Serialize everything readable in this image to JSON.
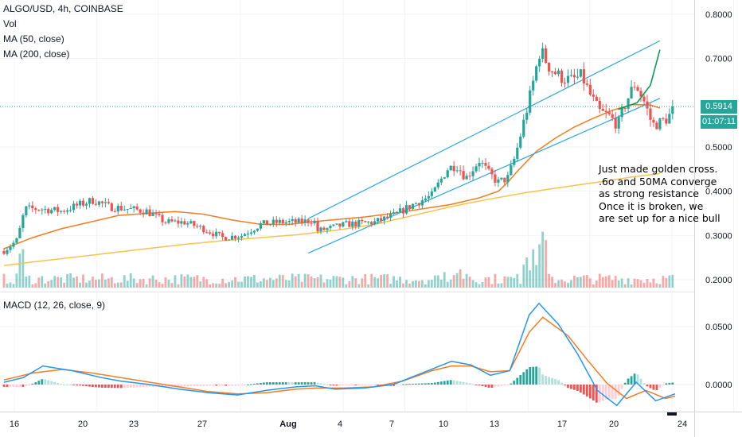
{
  "header": {
    "symbol_line": "ALGO/USD, 4h, COINBASE",
    "vol_label": "Vol",
    "ma50_label": "MA (50, close)",
    "ma200_label": "MA (200, close)",
    "macd_label": "MACD (12, 26, close, 9)"
  },
  "annotation": [
    "Just made golden cross.",
    ".6o and 50MA converge",
    "as strong resistance",
    "Once it is broken, we",
    "are set up for a nice bull"
  ],
  "price_badge": {
    "value": "0.5914",
    "countdown": "01:07:11"
  },
  "colors": {
    "up": "#26a69a",
    "down": "#ef5350",
    "ma50": "#f57c1f",
    "ma200": "#f7c34a",
    "channel": "#2aa6e0",
    "macd": "#2196f3",
    "signal": "#f57c1f",
    "projection": "#0b9e5a"
  },
  "chart_data": [
    {
      "type": "candlestick",
      "title": "ALGO/USD, 4h, COINBASE",
      "y_ticks": [
        "0.8000",
        "0.7000",
        "0.6000",
        "0.5000",
        "0.4000",
        "0.3000",
        "0.2000"
      ],
      "ylim": [
        0.18,
        0.83
      ],
      "x_ticks": [
        "16",
        "20",
        "23",
        "27",
        "Aug",
        "4",
        "7",
        "10",
        "13",
        "17",
        "20",
        "24"
      ],
      "last_price": 0.5914,
      "series": [
        {
          "name": "MA (50, close)",
          "points": [
            [
              15.5,
              0.27
            ],
            [
              17,
              0.295
            ],
            [
              18.5,
              0.315
            ],
            [
              20,
              0.33
            ],
            [
              21.5,
              0.345
            ],
            [
              23,
              0.35
            ],
            [
              24.5,
              0.354
            ],
            [
              26,
              0.348
            ],
            [
              27.5,
              0.335
            ],
            [
              29,
              0.325
            ],
            [
              30.5,
              0.325
            ],
            [
              31.5,
              0.33
            ],
            [
              33,
              0.336
            ],
            [
              34.5,
              0.342
            ],
            [
              36,
              0.35
            ],
            [
              37.5,
              0.36
            ],
            [
              39,
              0.37
            ],
            [
              40.5,
              0.385
            ],
            [
              41.5,
              0.4
            ],
            [
              42,
              0.42
            ],
            [
              42.5,
              0.445
            ],
            [
              43.5,
              0.49
            ],
            [
              44.5,
              0.52
            ],
            [
              45.5,
              0.545
            ],
            [
              46.5,
              0.565
            ],
            [
              47.5,
              0.583
            ],
            [
              48.5,
              0.596
            ],
            [
              49.5,
              0.595
            ],
            [
              50,
              0.588
            ]
          ]
        },
        {
          "name": "MA (200, close)",
          "points": [
            [
              15.5,
              0.232
            ],
            [
              17,
              0.24
            ],
            [
              19,
              0.25
            ],
            [
              21,
              0.26
            ],
            [
              23,
              0.27
            ],
            [
              25,
              0.28
            ],
            [
              27,
              0.288
            ],
            [
              29,
              0.295
            ],
            [
              31,
              0.302
            ],
            [
              33,
              0.312
            ],
            [
              35,
              0.325
            ],
            [
              37,
              0.345
            ],
            [
              39,
              0.365
            ],
            [
              41,
              0.382
            ],
            [
              43,
              0.397
            ],
            [
              45,
              0.41
            ],
            [
              47,
              0.422
            ],
            [
              48.5,
              0.432
            ],
            [
              50,
              0.44
            ]
          ]
        },
        {
          "name": "Volume",
          "visible": true
        },
        {
          "name": "Channel upper",
          "points": [
            [
              31.5,
              0.338
            ],
            [
              50,
              0.74
            ]
          ]
        },
        {
          "name": "Channel lower",
          "points": [
            [
              31.5,
              0.26
            ],
            [
              50,
              0.61
            ]
          ]
        },
        {
          "name": "Projection",
          "points": [
            [
              47.8,
              0.585
            ],
            [
              48.8,
              0.6
            ],
            [
              49.5,
              0.64
            ],
            [
              50,
              0.72
            ]
          ]
        }
      ]
    },
    {
      "type": "line",
      "title": "MACD (12, 26, close, 9)",
      "y_ticks": [
        "0.0500",
        "0.0000"
      ],
      "ylim": [
        -0.022,
        0.075
      ],
      "series": [
        {
          "name": "MACD",
          "points": [
            [
              15.5,
              0.002
            ],
            [
              16.5,
              0.006
            ],
            [
              17.5,
              0.016
            ],
            [
              19,
              0.012
            ],
            [
              20.5,
              0.006
            ],
            [
              21.5,
              0.003
            ],
            [
              23,
              0.0
            ],
            [
              24.5,
              -0.004
            ],
            [
              26,
              -0.007
            ],
            [
              27.5,
              -0.009
            ],
            [
              29,
              -0.005
            ],
            [
              30.5,
              -0.002
            ],
            [
              31.5,
              -0.001
            ],
            [
              32.5,
              -0.004
            ],
            [
              34,
              -0.003
            ],
            [
              35.5,
              0.0
            ],
            [
              37,
              0.01
            ],
            [
              38.5,
              0.02
            ],
            [
              39.5,
              0.017
            ],
            [
              40.5,
              0.008
            ],
            [
              41.5,
              0.012
            ],
            [
              42.5,
              0.06
            ],
            [
              43,
              0.07
            ],
            [
              44,
              0.052
            ],
            [
              45,
              0.026
            ],
            [
              46,
              -0.005
            ],
            [
              47,
              -0.018
            ],
            [
              48,
              0.002
            ],
            [
              49,
              -0.014
            ],
            [
              50,
              -0.008
            ]
          ]
        },
        {
          "name": "Signal",
          "points": [
            [
              15.5,
              0.004
            ],
            [
              17,
              0.01
            ],
            [
              18.5,
              0.013
            ],
            [
              20,
              0.01
            ],
            [
              21.5,
              0.006
            ],
            [
              23,
              0.002
            ],
            [
              24.5,
              -0.002
            ],
            [
              26,
              -0.006
            ],
            [
              27.5,
              -0.008
            ],
            [
              29,
              -0.007
            ],
            [
              30.5,
              -0.004
            ],
            [
              31.5,
              -0.003
            ],
            [
              33,
              -0.003
            ],
            [
              34.5,
              -0.002
            ],
            [
              36,
              0.003
            ],
            [
              37.5,
              0.012
            ],
            [
              38.5,
              0.016
            ],
            [
              39.5,
              0.016
            ],
            [
              40.5,
              0.011
            ],
            [
              41.5,
              0.012
            ],
            [
              42.5,
              0.045
            ],
            [
              43.2,
              0.058
            ],
            [
              44.5,
              0.042
            ],
            [
              45.5,
              0.021
            ],
            [
              46.5,
              0.001
            ],
            [
              47.5,
              -0.012
            ],
            [
              48.5,
              -0.005
            ],
            [
              49.5,
              -0.012
            ],
            [
              50,
              -0.01
            ]
          ]
        },
        {
          "name": "Histogram",
          "visible": true
        }
      ]
    }
  ]
}
